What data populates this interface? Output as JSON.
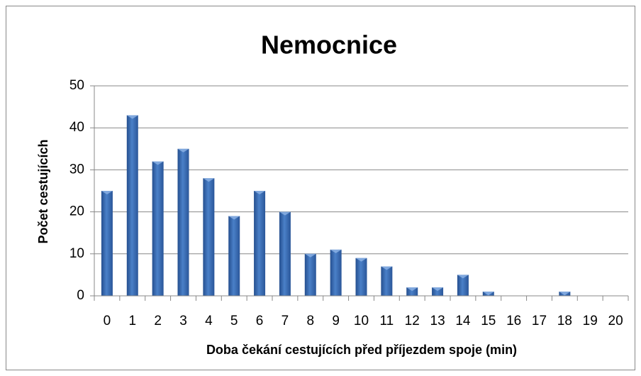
{
  "chart_data": {
    "type": "bar",
    "title": "Nemocnice",
    "x_label": "Doba čekání cestujících před příjezdem spoje (min)",
    "y_label": "Počet cestujících",
    "categories": [
      "0",
      "1",
      "2",
      "3",
      "4",
      "5",
      "6",
      "7",
      "8",
      "9",
      "10",
      "11",
      "12",
      "13",
      "14",
      "15",
      "16",
      "17",
      "18",
      "19",
      "20"
    ],
    "values": [
      25,
      43,
      32,
      35,
      28,
      19,
      25,
      20,
      10,
      11,
      9,
      7,
      2,
      2,
      5,
      1,
      0,
      0,
      1,
      0,
      0
    ],
    "color": "#4472c4",
    "ylim": [
      0,
      50
    ],
    "yticks": [
      0,
      10,
      20,
      30,
      40,
      50
    ],
    "grid": true
  }
}
